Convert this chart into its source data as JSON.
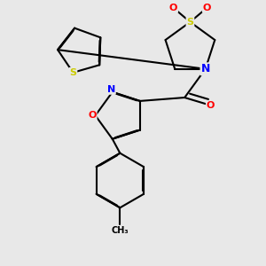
{
  "bg_color": "#e8e8e8",
  "atom_colors": {
    "S": "#cccc00",
    "N": "#0000ff",
    "O": "#ff0000",
    "C": "#000000"
  },
  "bond_color": "#000000",
  "bond_width": 1.5
}
